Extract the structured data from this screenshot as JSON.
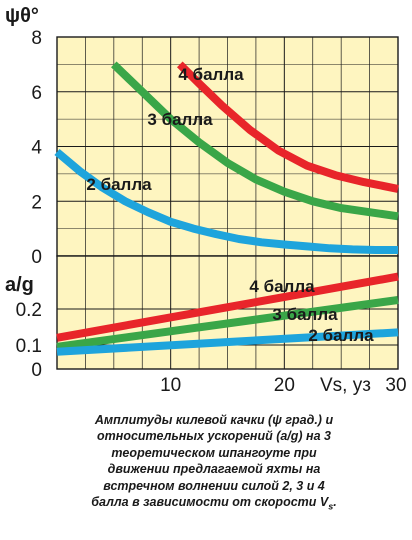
{
  "chart_data": [
    {
      "type": "line",
      "title": "",
      "ylabel": "ψθ°",
      "xlabel": "",
      "xlim": [
        0,
        30
      ],
      "ylim": [
        0,
        8
      ],
      "x_ticks": [],
      "y_ticks": [
        "0",
        "2",
        "4",
        "6",
        "8"
      ],
      "y_tick_values": [
        0,
        2,
        4,
        6,
        8
      ],
      "background": "#fef5c0",
      "grid": true,
      "series": [
        {
          "name": "4 балла",
          "color": "#e8252a",
          "points": [
            [
              10.8,
              7.0
            ],
            [
              12.5,
              6.3
            ],
            [
              14.5,
              5.5
            ],
            [
              17,
              4.6
            ],
            [
              19.5,
              3.85
            ],
            [
              22,
              3.3
            ],
            [
              24.5,
              2.95
            ],
            [
              27,
              2.7
            ],
            [
              30,
              2.45
            ]
          ]
        },
        {
          "name": "3 балла",
          "color": "#3aa648",
          "points": [
            [
              5,
              7.0
            ],
            [
              7.5,
              6.0
            ],
            [
              10,
              5.0
            ],
            [
              12.5,
              4.15
            ],
            [
              15,
              3.4
            ],
            [
              17.5,
              2.8
            ],
            [
              20,
              2.35
            ],
            [
              22.5,
              2.0
            ],
            [
              25,
              1.75
            ],
            [
              27.5,
              1.6
            ],
            [
              30,
              1.45
            ]
          ]
        },
        {
          "name": "2 балла",
          "color": "#1ea4dc",
          "points": [
            [
              0,
              3.8
            ],
            [
              2,
              3.1
            ],
            [
              4,
              2.5
            ],
            [
              6,
              2.0
            ],
            [
              8,
              1.6
            ],
            [
              10,
              1.25
            ],
            [
              12,
              1.0
            ],
            [
              14,
              0.8
            ],
            [
              16,
              0.62
            ],
            [
              18,
              0.5
            ],
            [
              20,
              0.42
            ],
            [
              22,
              0.35
            ],
            [
              24,
              0.28
            ],
            [
              26,
              0.24
            ],
            [
              28,
              0.22
            ],
            [
              30,
              0.22
            ]
          ]
        }
      ]
    },
    {
      "type": "line",
      "title": "",
      "ylabel": "a/g",
      "xlabel": "Vs, уз",
      "xlim": [
        0,
        30
      ],
      "ylim": [
        0,
        0.35
      ],
      "x_ticks": [
        "10",
        "20",
        "30"
      ],
      "x_tick_values": [
        10,
        20,
        30
      ],
      "y_ticks": [
        "0",
        "0.1",
        "0.2"
      ],
      "y_tick_values": [
        0,
        0.1,
        0.2
      ],
      "background": "#fef5c0",
      "grid": true,
      "series": [
        {
          "name": "4 балла",
          "color": "#e8252a",
          "points": [
            [
              0,
              0.12
            ],
            [
              30,
              0.29
            ]
          ]
        },
        {
          "name": "3 балла",
          "color": "#3aa648",
          "points": [
            [
              0,
              0.092
            ],
            [
              30,
              0.225
            ]
          ]
        },
        {
          "name": "2 балла",
          "color": "#1ea4dc",
          "points": [
            [
              0,
              0.072
            ],
            [
              30,
              0.135
            ]
          ]
        }
      ]
    }
  ],
  "caption": {
    "text": "Амплитуды килевой качки (ψ град.) и относительных ускорений (a/g) на 3 теоретическом шпангоуте при движении предлагаемой яхты на встречном волнении силой 2, 3 и 4 балла в зависимости от скорости V",
    "subscript": "s",
    "end": "."
  }
}
